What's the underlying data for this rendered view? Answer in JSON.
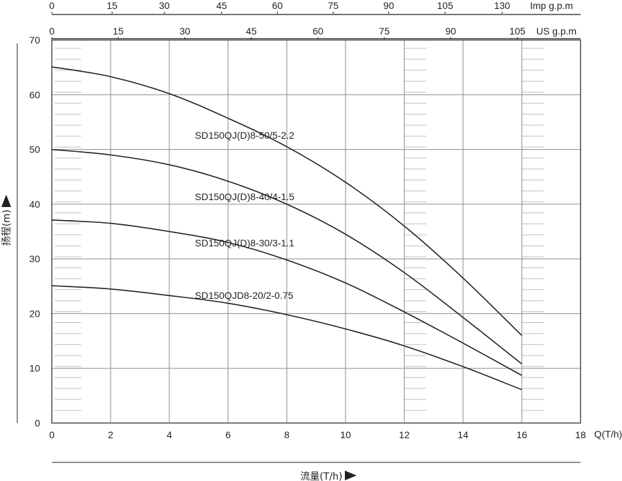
{
  "chart_data": {
    "type": "line",
    "title": "",
    "xlabel": "流量(T/h)",
    "ylabel": "扬程(m)",
    "xlim": [
      0,
      18
    ],
    "ylim": [
      0,
      70
    ],
    "x_ticks": [
      "0",
      "2",
      "4",
      "6",
      "8",
      "10",
      "12",
      "14",
      "16",
      "18"
    ],
    "y_ticks": [
      "0",
      "10",
      "20",
      "30",
      "40",
      "50",
      "60",
      "70"
    ],
    "x_unit_label": "Q(T/h)",
    "grid": true,
    "secondary_axes": [
      {
        "label": "Imp g.p.m",
        "ticks": [
          {
            "label": "0",
            "x": 0
          },
          {
            "label": "15",
            "x": 2.05
          },
          {
            "label": "30",
            "x": 3.83
          },
          {
            "label": "45",
            "x": 5.78
          },
          {
            "label": "60",
            "x": 7.68
          },
          {
            "label": "75",
            "x": 9.58
          },
          {
            "label": "90",
            "x": 11.47
          },
          {
            "label": "105",
            "x": 13.39
          },
          {
            "label": "130",
            "x": 15.33
          }
        ]
      },
      {
        "label": "US g.p.m",
        "ticks": [
          {
            "label": "0",
            "x": 0
          },
          {
            "label": "15",
            "x": 2.26
          },
          {
            "label": "30",
            "x": 4.53
          },
          {
            "label": "45",
            "x": 6.79
          },
          {
            "label": "60",
            "x": 9.06
          },
          {
            "label": "75",
            "x": 11.32
          },
          {
            "label": "90",
            "x": 13.58
          },
          {
            "label": "105",
            "x": 15.85
          }
        ]
      }
    ],
    "series": [
      {
        "name": "SD150QJ(D)8-50/5-2.2",
        "x": [
          0,
          2,
          4,
          6,
          8,
          10,
          12,
          14,
          16
        ],
        "values": [
          65.1,
          63.3,
          60.2,
          55.7,
          50.5,
          44.0,
          36.0,
          26.5,
          16.0
        ]
      },
      {
        "name": "SD150QJ(D)8-40/4-1.5",
        "x": [
          0,
          2,
          4,
          6,
          8,
          10,
          12,
          14,
          16
        ],
        "values": [
          50.0,
          49.0,
          47.2,
          44.2,
          40.0,
          34.5,
          27.5,
          19.3,
          10.8
        ]
      },
      {
        "name": "SD150QJ(D)8-30/3-1.1",
        "x": [
          0,
          2,
          4,
          6,
          8,
          10,
          12,
          14,
          16
        ],
        "values": [
          37.1,
          36.5,
          35.0,
          33.0,
          29.8,
          25.6,
          20.3,
          14.6,
          8.7
        ]
      },
      {
        "name": "SD150QJD8-20/2-0.75",
        "x": [
          0,
          2,
          4,
          6,
          8,
          10,
          12,
          14,
          16
        ],
        "values": [
          25.1,
          24.5,
          23.3,
          21.9,
          19.8,
          17.2,
          14.1,
          10.3,
          6.1
        ]
      }
    ]
  }
}
